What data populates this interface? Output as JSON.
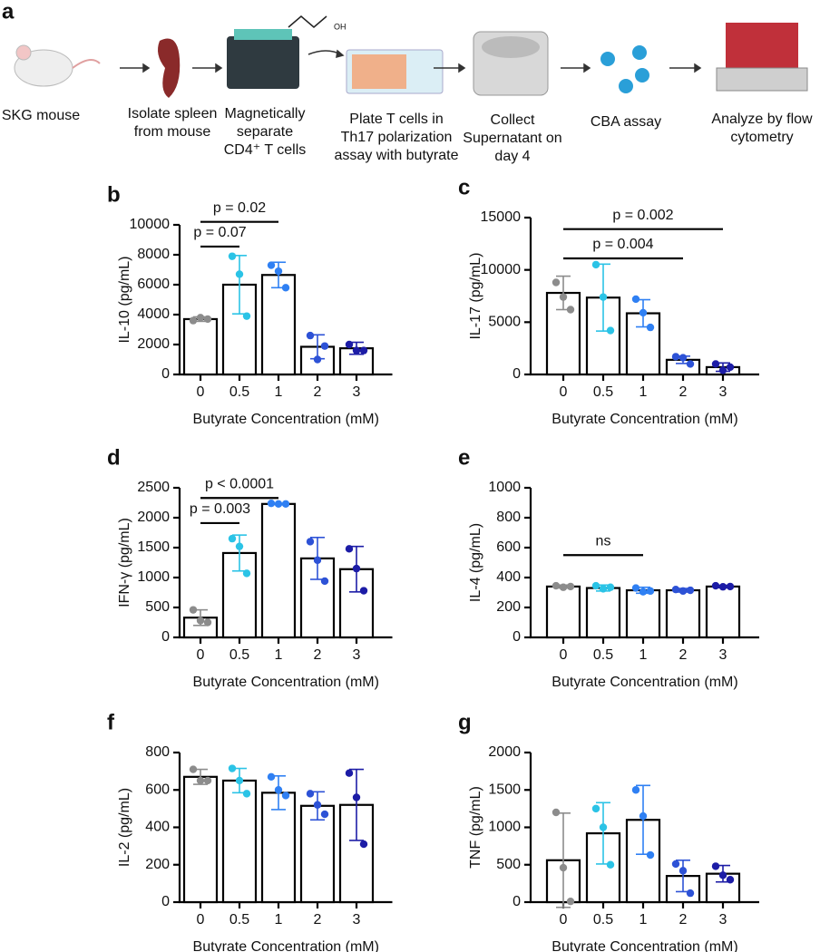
{
  "workflow": {
    "panel": "a",
    "steps": [
      {
        "lines": [
          "SKG mouse"
        ]
      },
      {
        "lines": [
          "Isolate spleen",
          "from mouse"
        ]
      },
      {
        "lines": [
          "Magnetically",
          "separate",
          "CD4⁺ T cells"
        ]
      },
      {
        "lines": [
          "Plate T cells in",
          "Th17 polarization",
          "assay with butyrate"
        ]
      },
      {
        "lines": [
          "Collect",
          "Supernatant on",
          "day 4"
        ]
      },
      {
        "lines": [
          "CBA assay"
        ]
      },
      {
        "lines": [
          "Analyze by flow",
          "cytometry"
        ]
      }
    ],
    "molecule_label": "OH"
  },
  "chart_data": [
    {
      "type": "bar",
      "panel": "b",
      "ylabel": "IL-10 (pg/mL)",
      "xlabel": "Butyrate Concentration (mM)",
      "categories": [
        "0",
        "0.5",
        "1",
        "2",
        "3"
      ],
      "values": [
        3700,
        6000,
        6650,
        1850,
        1750
      ],
      "errors": [
        150,
        1950,
        850,
        800,
        400
      ],
      "points": [
        [
          3600,
          3800,
          3700
        ],
        [
          7900,
          6700,
          3900
        ],
        [
          7300,
          6900,
          5800
        ],
        [
          2600,
          1000,
          1900
        ],
        [
          2000,
          1600,
          1600
        ]
      ],
      "colors": [
        "#8c8c8c",
        "#2bc3e6",
        "#2f80f3",
        "#2d52d6",
        "#1c1ca6"
      ],
      "ylim": [
        0,
        10000
      ],
      "yticks": [
        0,
        2000,
        4000,
        6000,
        8000,
        10000
      ],
      "brackets": [
        {
          "from": 0,
          "to": 1,
          "y": 8550,
          "label": "p = 0.07"
        },
        {
          "from": 0,
          "to": 2,
          "y": 10200,
          "label": "p = 0.02"
        }
      ]
    },
    {
      "type": "bar",
      "panel": "c",
      "ylabel": "IL-17 (pg/mL)",
      "xlabel": "Butyrate Concentration (mM)",
      "categories": [
        "0",
        "0.5",
        "1",
        "2",
        "3"
      ],
      "values": [
        7800,
        7350,
        5850,
        1400,
        700
      ],
      "errors": [
        1600,
        3200,
        1300,
        350,
        400
      ],
      "points": [
        [
          8800,
          7400,
          6200
        ],
        [
          10500,
          7400,
          4200
        ],
        [
          7200,
          5900,
          4500
        ],
        [
          1700,
          1600,
          1000
        ],
        [
          1000,
          400,
          700
        ]
      ],
      "colors": [
        "#8c8c8c",
        "#2bc3e6",
        "#2f80f3",
        "#2d52d6",
        "#1c1ca6"
      ],
      "ylim": [
        0,
        15000
      ],
      "yticks": [
        0,
        5000,
        10000,
        15000
      ],
      "brackets": [
        {
          "from": 0,
          "to": 3,
          "y": 11100,
          "label": "p = 0.004"
        },
        {
          "from": 0,
          "to": 4,
          "y": 13900,
          "label": "p = 0.002"
        }
      ]
    },
    {
      "type": "bar",
      "panel": "d",
      "ylabel": "IFN-γ (pg/mL)",
      "xlabel": "Butyrate Concentration (mM)",
      "categories": [
        "0",
        "0.5",
        "1",
        "2",
        "3"
      ],
      "values": [
        330,
        1410,
        2230,
        1320,
        1140
      ],
      "errors": [
        130,
        300,
        10,
        350,
        380
      ],
      "points": [
        [
          460,
          280,
          250
        ],
        [
          1650,
          1520,
          1070
        ],
        [
          2240,
          2230,
          2230
        ],
        [
          1600,
          1290,
          940
        ],
        [
          1480,
          1150,
          780
        ]
      ],
      "colors": [
        "#8c8c8c",
        "#2bc3e6",
        "#2f80f3",
        "#2d52d6",
        "#1c1ca6"
      ],
      "ylim": [
        0,
        2500
      ],
      "yticks": [
        0,
        500,
        1000,
        1500,
        2000,
        2500
      ],
      "brackets": [
        {
          "from": 0,
          "to": 1,
          "y": 1910,
          "label": "p = 0.003"
        },
        {
          "from": 0,
          "to": 2,
          "y": 2330,
          "label": "p < 0.0001"
        }
      ]
    },
    {
      "type": "bar",
      "panel": "e",
      "ylabel": "IL-4 (pg/mL)",
      "xlabel": "Butyrate Concentration (mM)",
      "categories": [
        "0",
        "0.5",
        "1",
        "2",
        "3"
      ],
      "values": [
        340,
        330,
        315,
        315,
        340
      ],
      "errors": [
        10,
        20,
        20,
        12,
        8
      ],
      "points": [
        [
          345,
          335,
          340
        ],
        [
          345,
          325,
          335
        ],
        [
          330,
          305,
          310
        ],
        [
          320,
          310,
          315
        ],
        [
          345,
          338,
          340
        ]
      ],
      "colors": [
        "#8c8c8c",
        "#2bc3e6",
        "#2f80f3",
        "#2d52d6",
        "#1c1ca6"
      ],
      "ylim": [
        0,
        1000
      ],
      "yticks": [
        0,
        200,
        400,
        600,
        800,
        1000
      ],
      "brackets": [
        {
          "from": 0,
          "to": 2,
          "y": 550,
          "label": "ns"
        }
      ]
    },
    {
      "type": "bar",
      "panel": "f",
      "ylabel": "IL-2 (pg/mL)",
      "xlabel": "Butyrate Concentration (mM)",
      "categories": [
        "0",
        "0.5",
        "1",
        "2",
        "3"
      ],
      "values": [
        670,
        650,
        585,
        515,
        520
      ],
      "errors": [
        40,
        65,
        90,
        75,
        190
      ],
      "points": [
        [
          710,
          650,
          650
        ],
        [
          715,
          650,
          580
        ],
        [
          670,
          600,
          570
        ],
        [
          580,
          520,
          470
        ],
        [
          690,
          560,
          310
        ]
      ],
      "colors": [
        "#8c8c8c",
        "#2bc3e6",
        "#2f80f3",
        "#2d52d6",
        "#1c1ca6"
      ],
      "ylim": [
        0,
        800
      ],
      "yticks": [
        0,
        200,
        400,
        600,
        800
      ],
      "brackets": []
    },
    {
      "type": "bar",
      "panel": "g",
      "ylabel": "TNF (pg/mL)",
      "xlabel": "Butyrate Concentration (mM)",
      "categories": [
        "0",
        "0.5",
        "1",
        "2",
        "3"
      ],
      "values": [
        560,
        920,
        1100,
        350,
        380
      ],
      "errors": [
        630,
        410,
        460,
        210,
        110
      ],
      "points": [
        [
          1200,
          460,
          10
        ],
        [
          1250,
          1000,
          500
        ],
        [
          1500,
          1150,
          630
        ],
        [
          510,
          420,
          120
        ],
        [
          480,
          360,
          300
        ]
      ],
      "colors": [
        "#8c8c8c",
        "#2bc3e6",
        "#2f80f3",
        "#2d52d6",
        "#1c1ca6"
      ],
      "ylim": [
        0,
        2000
      ],
      "yticks": [
        0,
        500,
        1000,
        1500,
        2000
      ],
      "brackets": []
    }
  ]
}
